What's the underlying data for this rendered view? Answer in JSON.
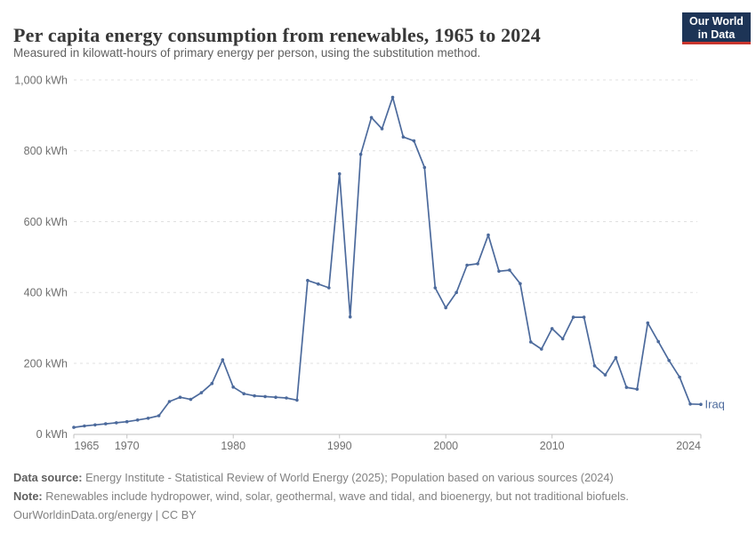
{
  "header": {
    "title": "Per capita energy consumption from renewables, 1965 to 2024",
    "logo": {
      "line1": "Our World",
      "line2": "in Data"
    }
  },
  "subtitle": "Measured in kilowatt-hours of primary energy per person, using the substitution method.",
  "colors": {
    "line": "#4c6a9c",
    "logo_navy": "#1d3456",
    "logo_red": "#c9352e",
    "gridline": "#e0e0e0",
    "axis": "#c2c2c2",
    "tick_text": "#6f6f6f"
  },
  "chart_data": {
    "type": "line",
    "title": "Per capita energy consumption from renewables, 1965 to 2024",
    "subtitle": "Measured in kilowatt-hours of primary energy per person, using the substitution method.",
    "unit": "kWh",
    "xlabel": "",
    "ylabel": "kWh",
    "ylim": [
      0,
      1000
    ],
    "grid": "dashed horizontal gridlines",
    "legend_position": "end-of-line entity label",
    "x": [
      1965,
      1966,
      1967,
      1968,
      1969,
      1970,
      1971,
      1972,
      1973,
      1974,
      1975,
      1976,
      1977,
      1978,
      1979,
      1980,
      1981,
      1982,
      1983,
      1984,
      1985,
      1986,
      1987,
      1988,
      1989,
      1990,
      1991,
      1992,
      1993,
      1994,
      1995,
      1996,
      1997,
      1998,
      1999,
      2000,
      2001,
      2002,
      2003,
      2004,
      2005,
      2006,
      2007,
      2008,
      2009,
      2010,
      2011,
      2012,
      2013,
      2014,
      2015,
      2016,
      2017,
      2018,
      2019,
      2020,
      2021,
      2022,
      2023,
      2024
    ],
    "series": [
      {
        "name": "Iraq",
        "values": [
          19,
          23,
          26,
          29,
          32,
          35,
          40,
          45,
          52,
          92,
          104,
          98,
          117,
          143,
          210,
          133,
          114,
          108,
          106,
          104,
          102,
          96,
          434,
          424,
          413,
          735,
          331,
          790,
          894,
          862,
          951,
          839,
          828,
          753,
          413,
          357,
          400,
          477,
          481,
          562,
          460,
          463,
          425,
          260,
          240,
          298,
          269,
          330,
          330,
          193,
          167,
          216,
          132,
          127,
          314,
          261,
          208,
          161,
          85,
          84
        ]
      }
    ],
    "y_ticks": [
      {
        "value": 0,
        "label": "0 kWh"
      },
      {
        "value": 200,
        "label": "200 kWh"
      },
      {
        "value": 400,
        "label": "400 kWh"
      },
      {
        "value": 600,
        "label": "600 kWh"
      },
      {
        "value": 800,
        "label": "800 kWh"
      },
      {
        "value": 1000,
        "label": "1,000 kWh"
      }
    ],
    "x_ticks": [
      {
        "year": 1965,
        "label": "1965",
        "align": "start"
      },
      {
        "year": 1970,
        "label": "1970",
        "align": "middle"
      },
      {
        "year": 1980,
        "label": "1980",
        "align": "middle"
      },
      {
        "year": 1990,
        "label": "1990",
        "align": "middle"
      },
      {
        "year": 2000,
        "label": "2000",
        "align": "middle"
      },
      {
        "year": 2010,
        "label": "2010",
        "align": "middle"
      },
      {
        "year": 2024,
        "label": "2024",
        "align": "end"
      }
    ]
  },
  "footer": {
    "datasource_label": "Data source:",
    "datasource": "Energy Institute - Statistical Review of World Energy (2025); Population based on various sources (2024)",
    "note_label": "Note:",
    "note": "Renewables include hydropower, wind, solar, geothermal, wave and tidal, and bioenergy, but not traditional biofuels.",
    "link": "OurWorldinData.org/energy | CC BY"
  }
}
